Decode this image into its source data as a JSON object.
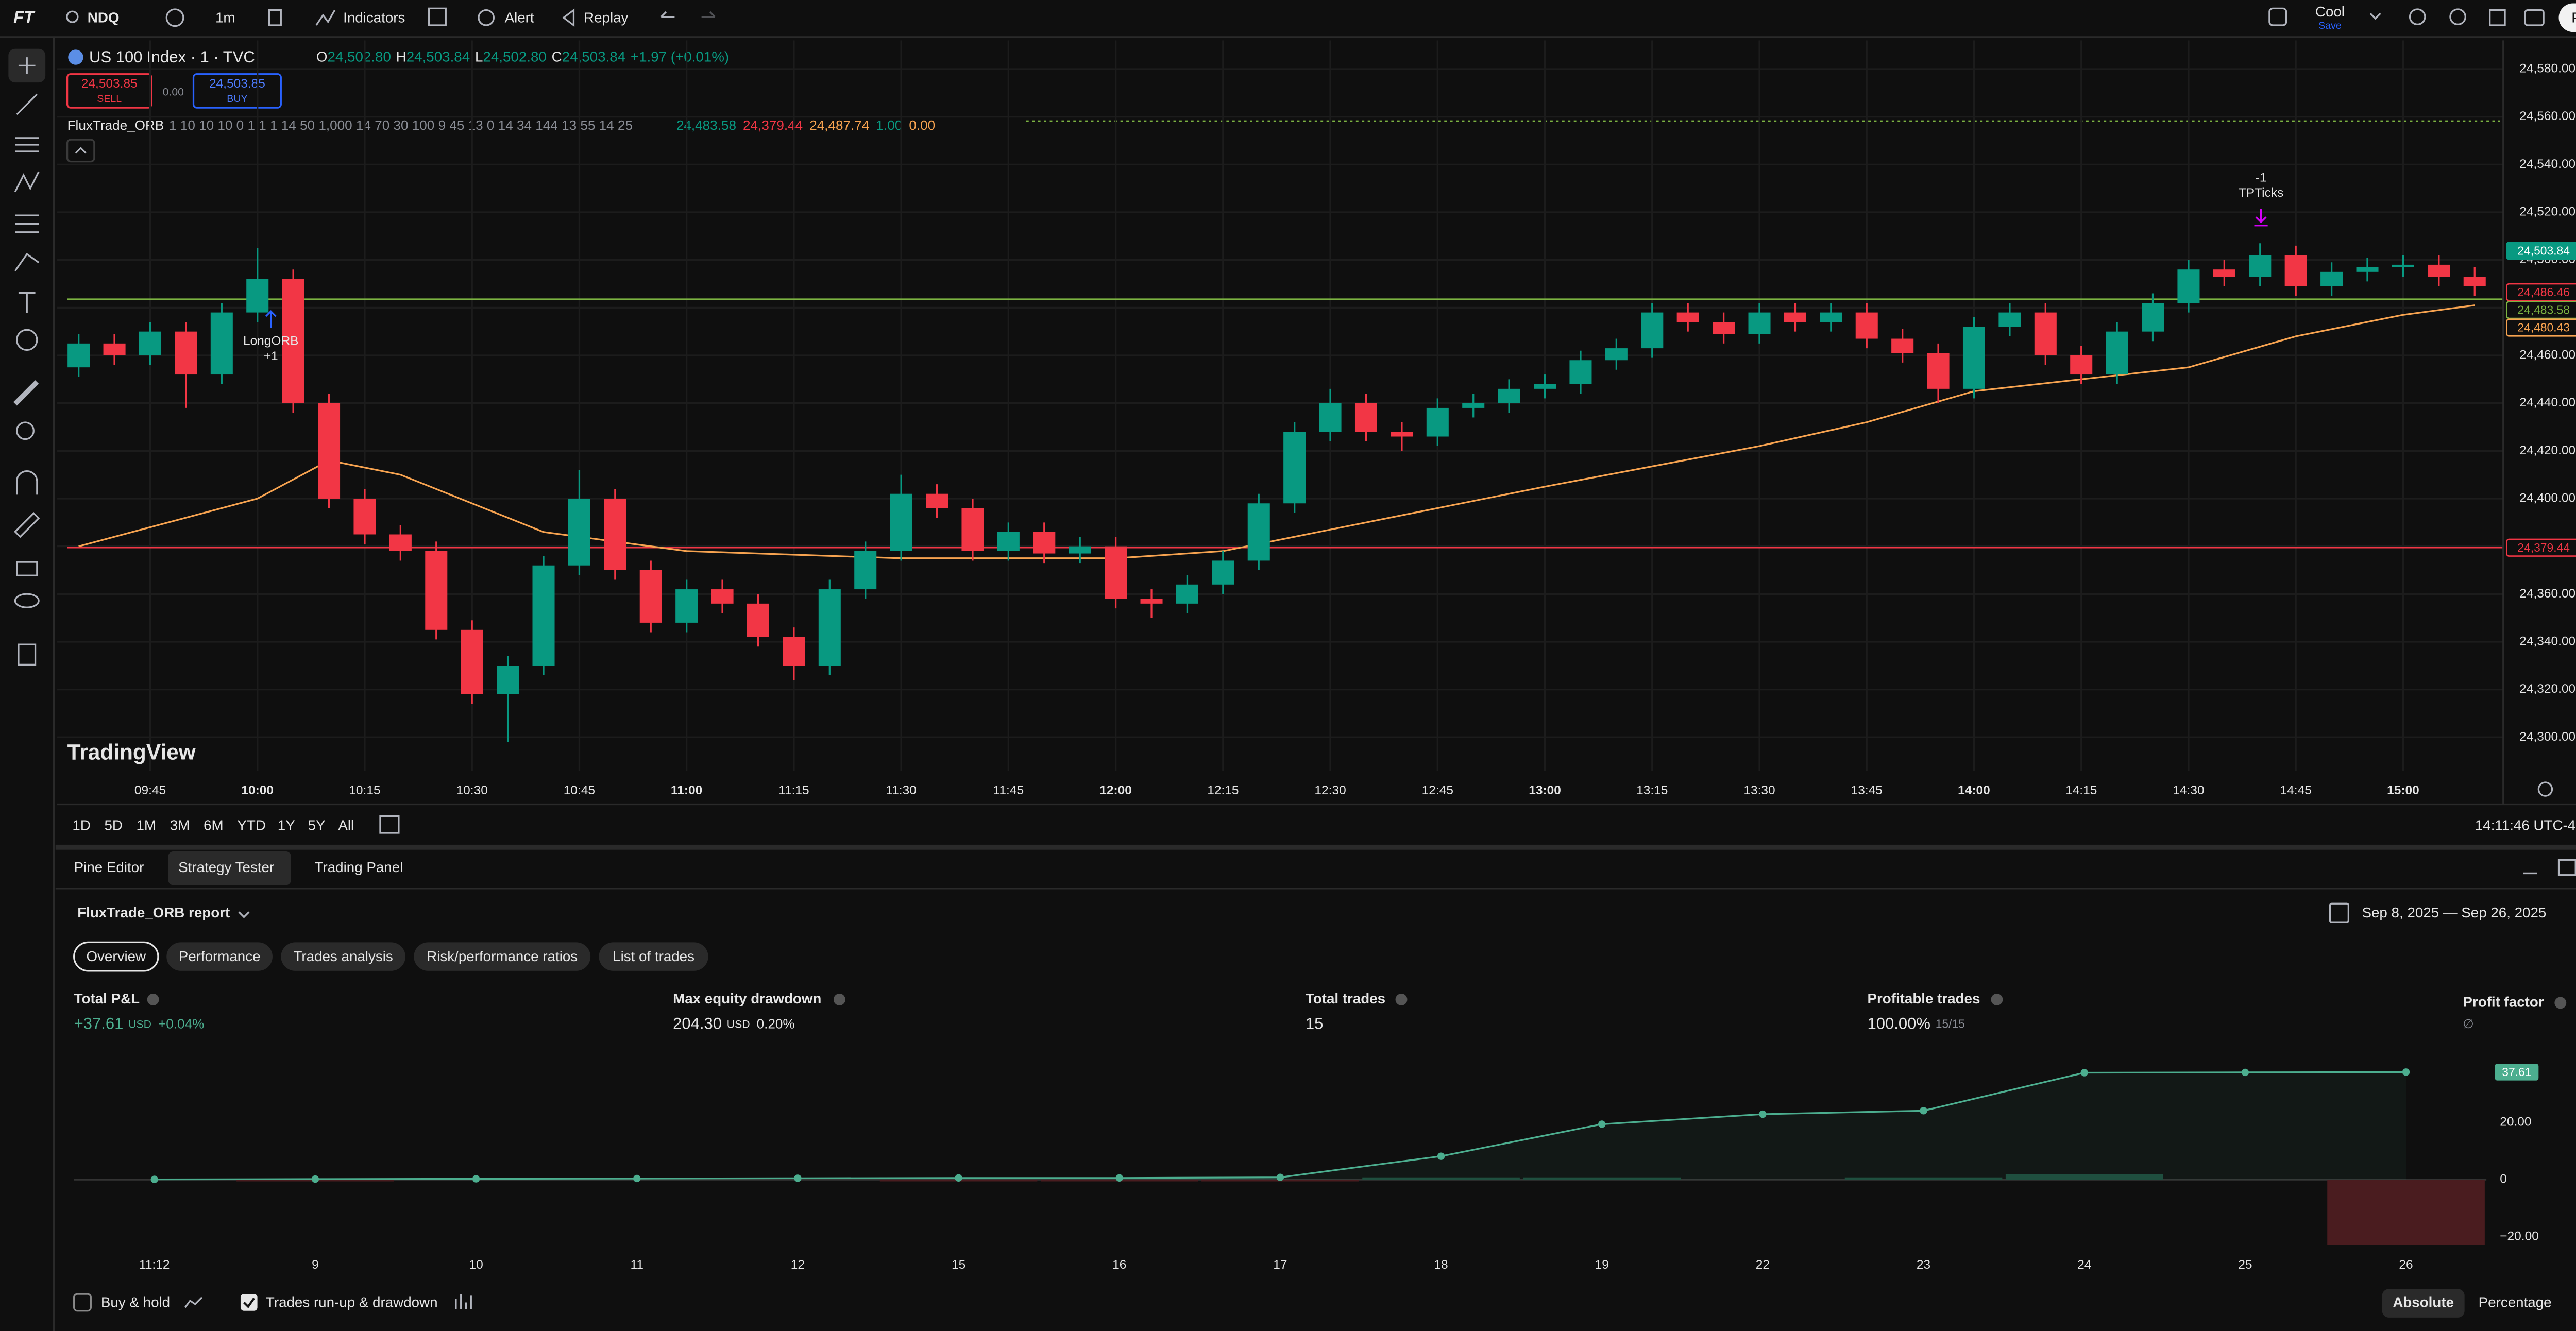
{
  "toolbar": {
    "logo": "FT",
    "symbol": "NDQ",
    "interval": "1m",
    "indicators": "Indicators",
    "alert": "Alert",
    "replay": "Replay",
    "layout": "Cool",
    "layout_status": "Save",
    "publish": "Publish"
  },
  "legend": {
    "title": "US 100 Index · 1 · TVC",
    "open_label": "O",
    "open": "24,502.80",
    "high_label": "H",
    "high": "24,503.84",
    "low_label": "L",
    "low": "24,502.80",
    "close_label": "C",
    "close": "24,503.84",
    "change": "+1.97 (+0.01%)"
  },
  "order_panel": {
    "sell_price": "24,503.85",
    "sell": "SELL",
    "spread": "0.00",
    "buy_price": "24,503.85",
    "buy": "BUY"
  },
  "indicator": {
    "name": "FluxTrade_ORB",
    "params": "1 10 10 10 0 1 1 1 14 50 1,000 14 70 30 100 9 45 13 0 14 34 144 13 55 14 25",
    "values": [
      "24,483.58",
      "24,379.44",
      "24,487.74",
      "1.00",
      "0.00"
    ]
  },
  "watermark": "TradingView",
  "range_buttons": [
    "1D",
    "5D",
    "1M",
    "3M",
    "6M",
    "YTD",
    "1Y",
    "5Y",
    "All"
  ],
  "clock": "14:11:46 UTC-4",
  "panel_tabs": [
    "Pine Editor",
    "Strategy Tester",
    "Trading Panel"
  ],
  "report": {
    "title": "FluxTrade_ORB report",
    "date_range": "Sep 8, 2025 — Sep 26, 2025",
    "tabs": [
      "Overview",
      "Performance",
      "Trades analysis",
      "Risk/performance ratios",
      "List of trades"
    ],
    "metrics": [
      {
        "label": "Total P&L",
        "value": "+37.61",
        "unit": "USD",
        "extra": "+0.04%"
      },
      {
        "label": "Max equity drawdown",
        "value": "204.30",
        "unit": "USD",
        "extra": "0.20%"
      },
      {
        "label": "Total trades",
        "value": "15"
      },
      {
        "label": "Profitable trades",
        "value": "100.00%",
        "extra": "15/15"
      },
      {
        "label": "Profit factor",
        "value": "∅"
      }
    ]
  },
  "footer": {
    "buy_hold": "Buy & hold",
    "runup": "Trades run-up & drawdown",
    "absolute": "Absolute",
    "percentage": "Percentage"
  },
  "chart_data": [
    {
      "type": "candlestick",
      "x": [
        575,
        580,
        585,
        590,
        595,
        600,
        605,
        610,
        615,
        620,
        625,
        630,
        635,
        640,
        645,
        650,
        655,
        660,
        665,
        670,
        675,
        680,
        685,
        690,
        695,
        700,
        705,
        710,
        715,
        720,
        725,
        730,
        735,
        740,
        745,
        750,
        755,
        760,
        765,
        770,
        775,
        780,
        785,
        790,
        795,
        800,
        805,
        810,
        815,
        820,
        825,
        830,
        835,
        840,
        845,
        850,
        855,
        860,
        865,
        870,
        875,
        880,
        885,
        890,
        895,
        900,
        905,
        910
      ],
      "open": [
        24455,
        24465,
        24460,
        24470,
        24452,
        24478,
        24492,
        24440,
        24400,
        24385,
        24378,
        24345,
        24318,
        24330,
        24372,
        24400,
        24370,
        24348,
        24362,
        24356,
        24342,
        24330,
        24362,
        24378,
        24402,
        24396,
        24378,
        24386,
        24377,
        24380,
        24358,
        24356,
        24364,
        24374,
        24398,
        24428,
        24440,
        24428,
        24426,
        24438,
        24440,
        24446,
        24448,
        24458,
        24463,
        24478,
        24474,
        24469,
        24478,
        24474,
        24478,
        24467,
        24461,
        24446,
        24472,
        24478,
        24460,
        24452,
        24470,
        24482,
        24496,
        24493,
        24502,
        24489,
        24495,
        24497,
        24498,
        24493
      ],
      "high": [
        24469,
        24469,
        24474,
        24474,
        24482,
        24505,
        24496,
        24444,
        24404,
        24389,
        24382,
        24349,
        24334,
        24376,
        24412,
        24404,
        24374,
        24366,
        24366,
        24360,
        24346,
        24366,
        24382,
        24410,
        24406,
        24400,
        24390,
        24390,
        24384,
        24384,
        24362,
        24368,
        24378,
        24402,
        24432,
        24446,
        24444,
        24432,
        24442,
        24444,
        24450,
        24452,
        24462,
        24467,
        24482,
        24482,
        24478,
        24482,
        24482,
        24482,
        24482,
        24471,
        24465,
        24476,
        24482,
        24482,
        24464,
        24474,
        24486,
        24500,
        24500,
        24507,
        24506,
        24499,
        24501,
        24502,
        24502,
        24497
      ],
      "low": [
        24451,
        24456,
        24456,
        24438,
        24448,
        24474,
        24436,
        24396,
        24381,
        24374,
        24341,
        24314,
        24298,
        24326,
        24368,
        24366,
        24344,
        24344,
        24352,
        24338,
        24324,
        24326,
        24358,
        24374,
        24392,
        24374,
        24374,
        24373,
        24373,
        24354,
        24350,
        24352,
        24360,
        24370,
        24394,
        24424,
        24424,
        24420,
        24422,
        24434,
        24436,
        24442,
        24444,
        24454,
        24459,
        24470,
        24465,
        24465,
        24470,
        24470,
        24463,
        24457,
        24440,
        24442,
        24468,
        24456,
        24448,
        24448,
        24466,
        24478,
        24489,
        24489,
        24485,
        24485,
        24491,
        24493,
        24489,
        24485
      ],
      "close": [
        24465,
        24460,
        24470,
        24452,
        24478,
        24492,
        24440,
        24400,
        24385,
        24378,
        24345,
        24318,
        24330,
        24372,
        24400,
        24370,
        24348,
        24362,
        24356,
        24342,
        24330,
        24362,
        24378,
        24402,
        24396,
        24378,
        24386,
        24377,
        24380,
        24358,
        24356,
        24364,
        24374,
        24398,
        24428,
        24440,
        24428,
        24426,
        24438,
        24440,
        24446,
        24448,
        24458,
        24463,
        24478,
        24474,
        24469,
        24478,
        24474,
        24478,
        24467,
        24461,
        24446,
        24472,
        24478,
        24460,
        24452,
        24470,
        24482,
        24496,
        24493,
        24502,
        24489,
        24495,
        24497,
        24498,
        24493,
        24489
      ],
      "up_color": "#089981",
      "down_color": "#f23645",
      "lines": [
        {
          "color": "#f7a350",
          "x": [
            575,
            600,
            610,
            620,
            640,
            660,
            690,
            720,
            735,
            750,
            780,
            810,
            825,
            840,
            870,
            885,
            900,
            910
          ],
          "values": [
            24380,
            24400,
            24416,
            24410,
            24386,
            24378,
            24375,
            24375,
            24378,
            24387,
            24405,
            24422,
            24432,
            24445,
            24455,
            24468,
            24477,
            24481
          ]
        }
      ],
      "levels": [
        {
          "value": 24483.58,
          "color": "#7cb342"
        },
        {
          "value": 24379.44,
          "color": "#f23645"
        }
      ],
      "price_labels": [
        {
          "value": 24503.84,
          "label": "24,503.84",
          "color": "#089981",
          "filled": true
        },
        {
          "value": 24486.46,
          "label": "24,486.46",
          "color": "#f23645"
        },
        {
          "value": 24483.58,
          "label": "24,483.58",
          "color": "#7cb342"
        },
        {
          "value": 24480.43,
          "label": "24,480.43",
          "color": "#f7a350"
        },
        {
          "value": 24379.44,
          "label": "24,379.44",
          "color": "#f23645"
        }
      ],
      "annotations": [
        "LongORB",
        "+1",
        "-1",
        "TPTicks"
      ],
      "xlim": [
        572,
        914
      ],
      "xticks": [
        {
          "value": 585,
          "label": "09:45"
        },
        {
          "value": 600,
          "label": "10:00"
        },
        {
          "value": 615,
          "label": "10:15"
        },
        {
          "value": 630,
          "label": "10:30"
        },
        {
          "value": 645,
          "label": "10:45"
        },
        {
          "value": 660,
          "label": "11:00"
        },
        {
          "value": 675,
          "label": "11:15"
        },
        {
          "value": 690,
          "label": "11:30"
        },
        {
          "value": 705,
          "label": "11:45"
        },
        {
          "value": 720,
          "label": "12:00"
        },
        {
          "value": 735,
          "label": "12:15"
        },
        {
          "value": 750,
          "label": "12:30"
        },
        {
          "value": 765,
          "label": "12:45"
        },
        {
          "value": 780,
          "label": "13:00"
        },
        {
          "value": 795,
          "label": "13:15"
        },
        {
          "value": 810,
          "label": "13:30"
        },
        {
          "value": 825,
          "label": "13:45"
        },
        {
          "value": 840,
          "label": "14:00"
        },
        {
          "value": 855,
          "label": "14:15"
        },
        {
          "value": 870,
          "label": "14:30"
        },
        {
          "value": 885,
          "label": "14:45"
        },
        {
          "value": 900,
          "label": "15:00"
        }
      ],
      "ylim": [
        24286,
        24592
      ],
      "yticks": [
        {
          "value": 24300,
          "label": "24,300.00"
        },
        {
          "value": 24320,
          "label": "24,320.00"
        },
        {
          "value": 24340,
          "label": "24,340.00"
        },
        {
          "value": 24360,
          "label": "24,360.00"
        },
        {
          "value": 24380,
          "label": "24,380.00"
        },
        {
          "value": 24400,
          "label": "24,400.00"
        },
        {
          "value": 24420,
          "label": "24,420.00"
        },
        {
          "value": 24440,
          "label": "24,440.00"
        },
        {
          "value": 24460,
          "label": "24,460.00"
        },
        {
          "value": 24480,
          "label": "24,480.00"
        },
        {
          "value": 24500,
          "label": "24,500.00"
        },
        {
          "value": 24520,
          "label": "24,520.00"
        },
        {
          "value": 24540,
          "label": "24,540.00"
        },
        {
          "value": 24560,
          "label": "24,560.00"
        },
        {
          "value": 24580,
          "label": "24,580.00"
        }
      ],
      "grid": true
    },
    {
      "type": "line",
      "categories": [
        "11:12",
        "9",
        "10",
        "11",
        "12",
        "15",
        "16",
        "17",
        "18",
        "19",
        "22",
        "23",
        "24",
        "25",
        "26"
      ],
      "series": [
        {
          "color": "#4cae8f",
          "values": [
            0.1,
            0.2,
            0.3,
            0.4,
            0.5,
            0.6,
            0.6,
            0.8,
            8.2,
            19.4,
            22.9,
            24.1,
            37.4,
            37.5,
            37.61
          ]
        }
      ],
      "bars": [
        {
          "color": "#1d4a3b",
          "values": [
            0,
            0,
            0,
            0,
            0,
            0,
            0,
            0,
            0.8,
            0.8,
            0,
            0.8,
            2,
            0,
            0
          ]
        },
        {
          "color": "#4a1c1f",
          "values": [
            0,
            -0.6,
            0,
            0,
            0,
            -0.6,
            -0.6,
            -0.6,
            0,
            0,
            0,
            0,
            0,
            0,
            -23
          ]
        }
      ],
      "ylim": [
        -23.5,
        41.8
      ],
      "yticks": [
        {
          "value": -20,
          "label": "−20.00"
        },
        0,
        {
          "value": 20,
          "label": "20.00"
        }
      ]
    }
  ]
}
